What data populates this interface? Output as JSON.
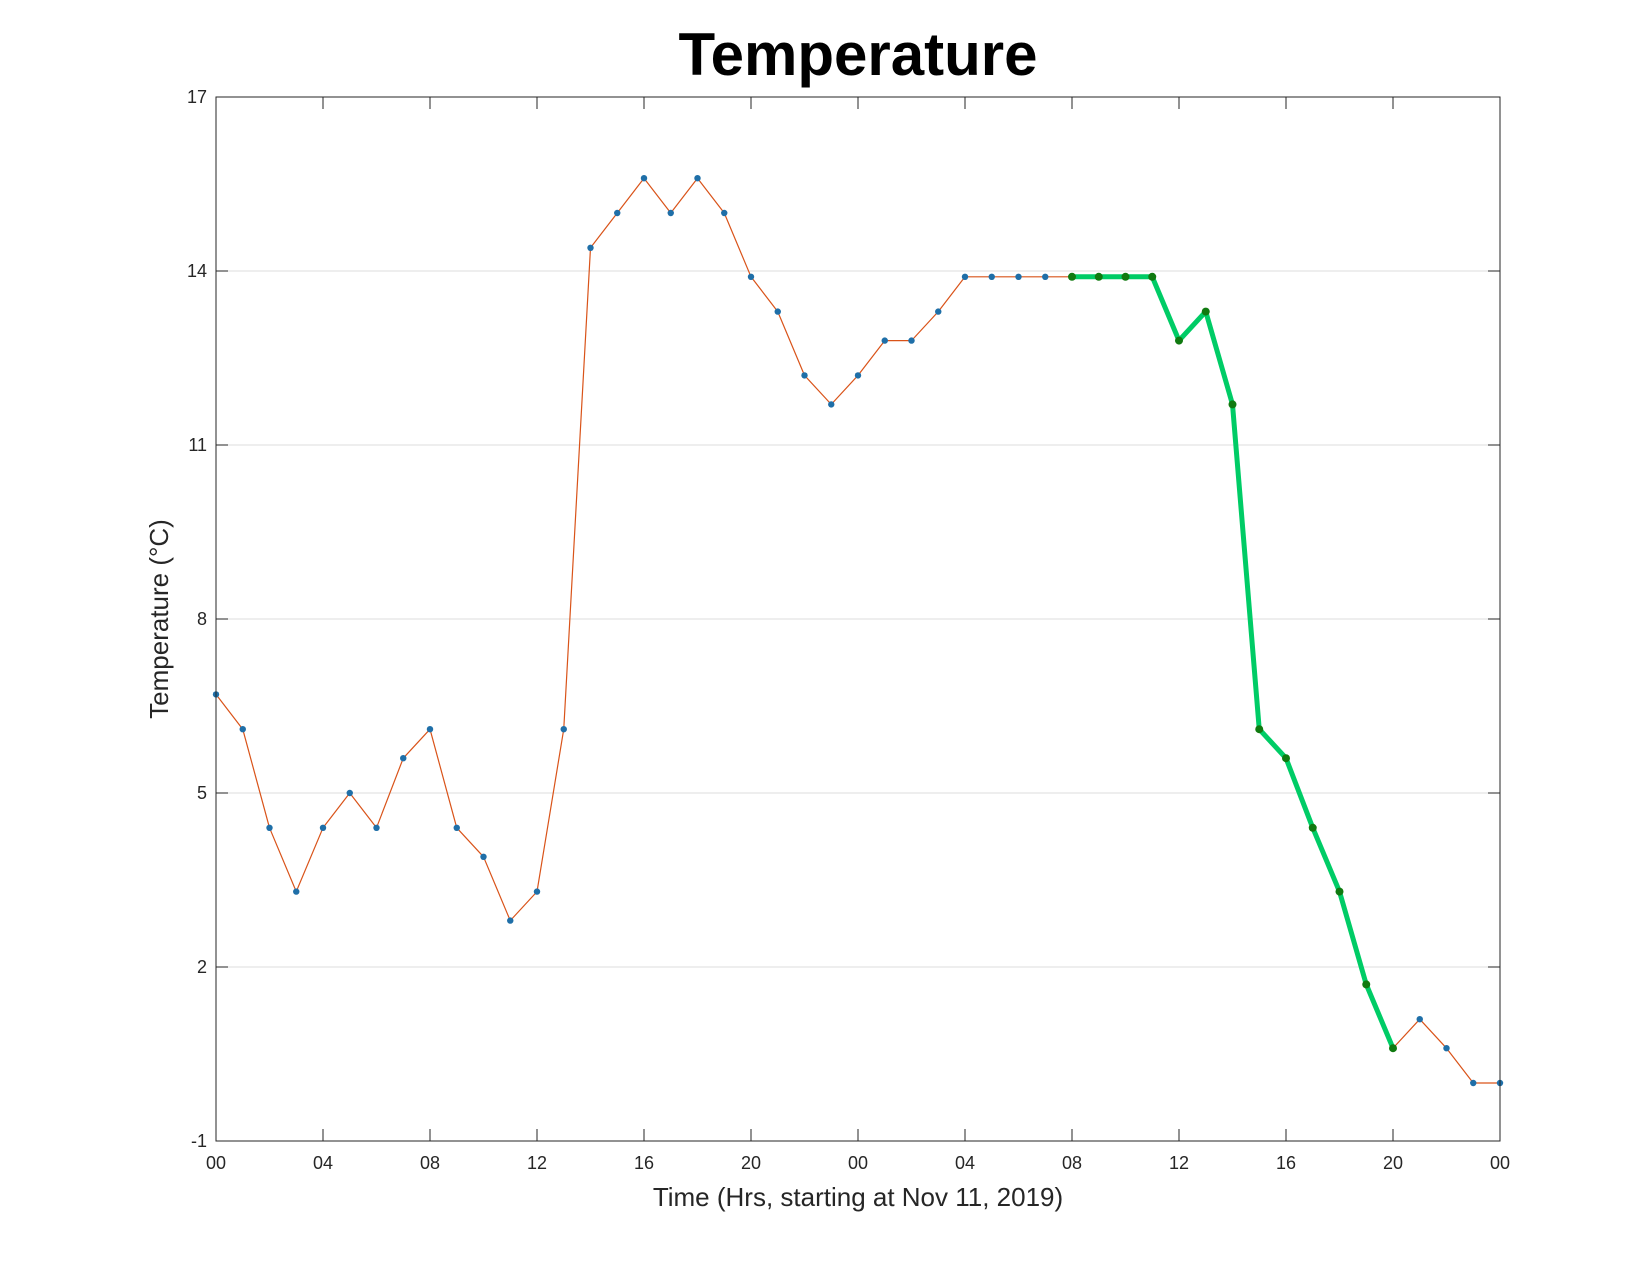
{
  "chart_data": {
    "type": "line",
    "title": "Temperature",
    "xlabel": "Time (Hrs, starting at Nov 11, 2019)",
    "ylabel": "Temperature (°C)",
    "ylim": [
      -1,
      17
    ],
    "xlim": [
      0,
      48
    ],
    "yticks": [
      -1,
      2,
      5,
      8,
      11,
      14,
      17
    ],
    "xticks": [
      {
        "x": 0,
        "label": "00"
      },
      {
        "x": 4,
        "label": "04"
      },
      {
        "x": 8,
        "label": "08"
      },
      {
        "x": 12,
        "label": "12"
      },
      {
        "x": 16,
        "label": "16"
      },
      {
        "x": 20,
        "label": "20"
      },
      {
        "x": 24,
        "label": "00"
      },
      {
        "x": 28,
        "label": "04"
      },
      {
        "x": 32,
        "label": "08"
      },
      {
        "x": 36,
        "label": "12"
      },
      {
        "x": 40,
        "label": "16"
      },
      {
        "x": 44,
        "label": "20"
      },
      {
        "x": 48,
        "label": "00"
      }
    ],
    "grid": "horizontal",
    "series": [
      {
        "color": "#d95319",
        "marker_color": "#1f6fa8",
        "x": [
          0,
          1,
          2,
          3,
          4,
          5,
          6,
          7,
          8,
          9,
          10,
          11,
          12,
          13,
          14,
          15,
          16,
          17,
          18,
          19,
          20,
          21,
          22,
          23,
          24,
          25,
          26,
          27,
          28,
          29,
          30,
          31,
          32,
          33,
          34,
          35,
          36,
          37,
          38,
          39,
          40,
          41,
          42,
          43,
          44,
          45,
          46,
          47,
          48
        ],
        "y": [
          6.7,
          6.1,
          4.4,
          3.3,
          4.4,
          5.0,
          4.4,
          5.6,
          6.1,
          4.4,
          3.9,
          2.8,
          3.3,
          6.1,
          14.4,
          15.0,
          15.6,
          15.0,
          15.6,
          15.0,
          13.9,
          13.3,
          12.2,
          11.7,
          12.2,
          12.8,
          12.8,
          13.3,
          13.9,
          13.9,
          13.9,
          13.9,
          13.9,
          13.9,
          13.9,
          13.9,
          12.8,
          13.3,
          11.7,
          6.1,
          5.6,
          4.4,
          3.3,
          1.7,
          0.6,
          1.1,
          0.6,
          0.0,
          0.0
        ]
      },
      {
        "color": "#00cc66",
        "marker_color": "#107a10",
        "x": [
          32,
          33,
          34,
          35,
          36,
          37,
          38,
          39,
          40,
          41,
          42,
          43,
          44
        ],
        "y": [
          13.9,
          13.9,
          13.9,
          13.9,
          12.8,
          13.3,
          11.7,
          6.1,
          5.6,
          4.4,
          3.3,
          1.7,
          0.6
        ]
      }
    ]
  }
}
